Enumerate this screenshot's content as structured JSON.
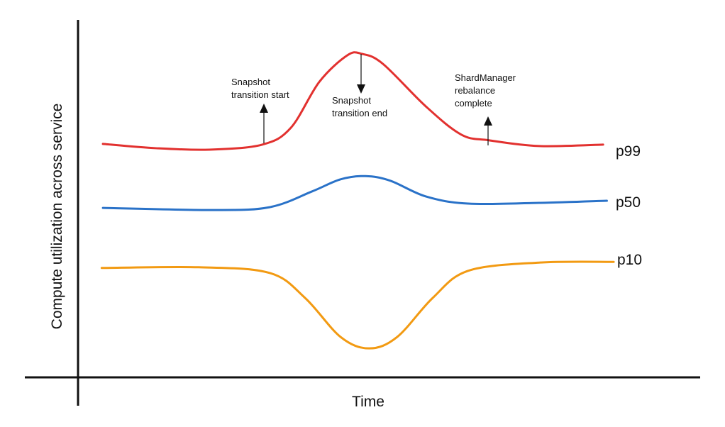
{
  "chart_data": {
    "type": "line",
    "title": "",
    "xlabel": "Time",
    "ylabel": "Compute utilization across service",
    "xlim": [
      0,
      100
    ],
    "ylim": [
      0,
      100
    ],
    "grid": false,
    "legend": "inline-right",
    "series": [
      {
        "name": "p99",
        "color": "#e2312f",
        "x": [
          4.0,
          12.5,
          21.1,
          29.6,
          34.2,
          38.8,
          43.3,
          45.6,
          49.0,
          55.9,
          61.6,
          66.1,
          74.1,
          84.4
        ],
        "y": [
          65.3,
          64.1,
          63.7,
          65.1,
          69.8,
          82.7,
          90.1,
          90.5,
          87.7,
          75.8,
          67.9,
          66.3,
          64.7,
          65.1
        ]
      },
      {
        "name": "p50",
        "color": "#2a72c8",
        "x": [
          4.0,
          21.7,
          30.8,
          37.6,
          42.2,
          46.2,
          50.2,
          55.9,
          62.7,
          74.1,
          85.0
        ],
        "y": [
          47.4,
          46.8,
          47.6,
          52.0,
          55.4,
          56.3,
          55.0,
          50.6,
          48.6,
          48.8,
          49.4
        ]
      },
      {
        "name": "p10",
        "color": "#f29a12",
        "x": [
          3.8,
          19.4,
          30.8,
          36.5,
          42.2,
          46.8,
          51.3,
          57.0,
          62.7,
          74.1,
          86.1
        ],
        "y": [
          30.6,
          30.8,
          29.2,
          22.2,
          11.3,
          8.1,
          11.3,
          22.2,
          29.8,
          32.1,
          32.3
        ]
      }
    ],
    "annotations": [
      {
        "lines": [
          "Snapshot",
          "transition start"
        ],
        "x": 29.9,
        "direction": "up"
      },
      {
        "lines": [
          "Snapshot",
          "transition end"
        ],
        "x": 45.5,
        "direction": "down"
      },
      {
        "lines": [
          "ShardManager",
          "rebalance",
          "complete"
        ],
        "x": 65.9,
        "direction": "up"
      }
    ]
  }
}
